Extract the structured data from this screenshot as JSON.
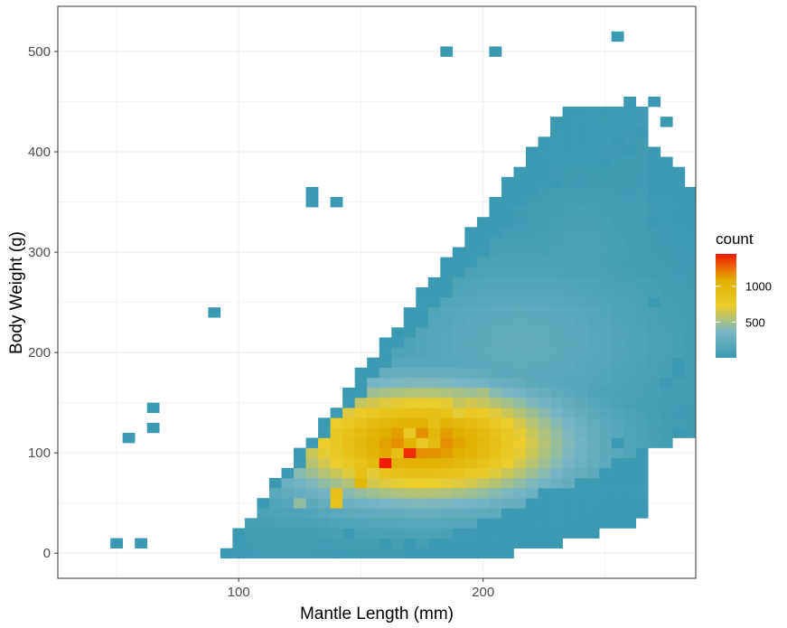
{
  "chart_data": {
    "type": "heatmap",
    "subtype": "2d-bin-count",
    "xlabel": "Mantle Length (mm)",
    "ylabel": "Body Weight (g)",
    "xlim": [
      26,
      287
    ],
    "ylim": [
      -25,
      545
    ],
    "x_ticks": [
      100,
      200
    ],
    "y_ticks": [
      0,
      100,
      200,
      300,
      400,
      500
    ],
    "grid": true,
    "bin_width_x": 5,
    "bin_height_y": 10,
    "legend": {
      "title": "count",
      "position": "right",
      "ticks": [
        500,
        1000
      ],
      "range": [
        1,
        1450
      ],
      "colors": [
        "#3b9ab2",
        "#78b7c5",
        "#ebcc2a",
        "#e1af00",
        "#f21a00"
      ]
    },
    "bins": [
      {
        "x": 50,
        "y": 10,
        "count": 1
      },
      {
        "x": 60,
        "y": 10,
        "count": 1
      },
      {
        "x": 55,
        "y": 115,
        "count": 1
      },
      {
        "x": 65,
        "y": 145,
        "count": 1
      },
      {
        "x": 65,
        "y": 125,
        "count": 1
      },
      {
        "x": 90,
        "y": 240,
        "count": 1
      },
      {
        "x": 185,
        "y": 500,
        "count": 1
      },
      {
        "x": 205,
        "y": 500,
        "count": 1
      },
      {
        "x": 255,
        "y": 515,
        "count": 1
      },
      {
        "x": 260,
        "y": 450,
        "count": 1
      },
      {
        "x": 270,
        "y": 450,
        "count": 1
      },
      {
        "x": 275,
        "y": 430,
        "count": 1
      },
      {
        "x": 265,
        "y": 420,
        "count": 2
      },
      {
        "x": 255,
        "y": 410,
        "count": 2
      },
      {
        "x": 260,
        "y": 400,
        "count": 2
      },
      {
        "x": 250,
        "y": 390,
        "count": 3
      },
      {
        "x": 280,
        "y": 190,
        "count": 1
      },
      {
        "x": 280,
        "y": 180,
        "count": 1
      },
      {
        "x": 275,
        "y": 170,
        "count": 1
      },
      {
        "x": 280,
        "y": 120,
        "count": 1
      },
      {
        "x": 130,
        "y": 360,
        "count": 1
      },
      {
        "x": 130,
        "y": 350,
        "count": 1
      },
      {
        "x": 140,
        "y": 350,
        "count": 1
      },
      {
        "x": 210,
        "y": 370,
        "count": 1
      },
      {
        "x": 230,
        "y": 370,
        "count": 1
      },
      {
        "x": 270,
        "y": 360,
        "count": 1
      },
      {
        "x": 270,
        "y": 330,
        "count": 1
      },
      {
        "x": 270,
        "y": 250,
        "count": 1
      },
      {
        "x": 145,
        "y": 20,
        "count": 1
      },
      {
        "x": 160,
        "y": 10,
        "count": 1
      },
      {
        "x": 170,
        "y": 10,
        "count": 1
      },
      {
        "x": 180,
        "y": 10,
        "count": 1
      },
      {
        "x": 200,
        "y": 20,
        "count": 1
      },
      {
        "x": 210,
        "y": 10,
        "count": 1
      },
      {
        "x": 220,
        "y": 10,
        "count": 1
      },
      {
        "x": 225,
        "y": 60,
        "count": 1
      },
      {
        "x": 265,
        "y": 100,
        "count": 1
      },
      {
        "x": 255,
        "y": 90,
        "count": 1
      },
      {
        "x": 255,
        "y": 110,
        "count": 2
      }
    ],
    "clusters": [
      {
        "cx": 175,
        "cy": 110,
        "sx": 40,
        "sy": 40,
        "peak": 1200
      },
      {
        "cx": 215,
        "cy": 210,
        "sx": 40,
        "sy": 60,
        "peak": 220
      },
      {
        "cx": 240,
        "cy": 300,
        "sx": 20,
        "sy": 50,
        "peak": 80
      },
      {
        "cx": 120,
        "cy": 50,
        "sx": 25,
        "sy": 20,
        "peak": 120
      }
    ],
    "hotspots": [
      {
        "x": 160,
        "y": 90,
        "count": 1450
      },
      {
        "x": 170,
        "y": 100,
        "count": 1400
      },
      {
        "x": 160,
        "y": 100,
        "count": 1100
      },
      {
        "x": 150,
        "y": 70,
        "count": 1000
      },
      {
        "x": 170,
        "y": 110,
        "count": 1050
      },
      {
        "x": 155,
        "y": 90,
        "count": 950
      },
      {
        "x": 180,
        "y": 120,
        "count": 1000
      },
      {
        "x": 180,
        "y": 110,
        "count": 950
      },
      {
        "x": 180,
        "y": 130,
        "count": 900
      },
      {
        "x": 150,
        "y": 80,
        "count": 900
      },
      {
        "x": 140,
        "y": 60,
        "count": 900
      },
      {
        "x": 140,
        "y": 50,
        "count": 850
      },
      {
        "x": 165,
        "y": 100,
        "count": 900
      },
      {
        "x": 175,
        "y": 110,
        "count": 800
      },
      {
        "x": 190,
        "y": 140,
        "count": 700
      },
      {
        "x": 170,
        "y": 120,
        "count": 800
      },
      {
        "x": 190,
        "y": 150,
        "count": 600
      },
      {
        "x": 200,
        "y": 160,
        "count": 520
      },
      {
        "x": 155,
        "y": 80,
        "count": 700
      },
      {
        "x": 125,
        "y": 50,
        "count": 450
      }
    ]
  }
}
